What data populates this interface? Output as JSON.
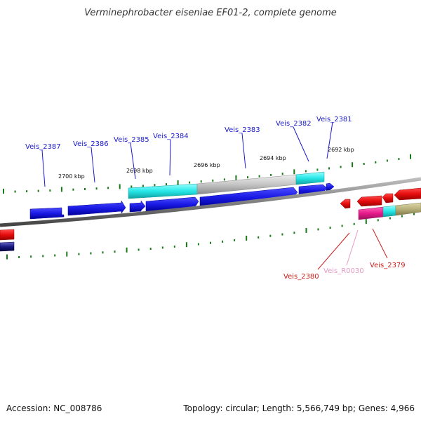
{
  "title": "Verminephrobacter eiseniae EF01-2, complete genome",
  "footer": {
    "accession": "Accession: NC_008786",
    "summary": "Topology: circular; Length: 5,566,749 bp; Genes: 4,966"
  },
  "colors": {
    "cds_forward": "#1a1ae6",
    "cds_reverse": "#e60d0d",
    "rna": "#e61a8c",
    "cyan_feature": "#26e6e6",
    "grey_feature": "#c4c4c4",
    "olive_feature": "#b8b07a",
    "backbone": "#808080",
    "tick": "#1a7a1a",
    "label_forward": "#1a1acc",
    "label_reverse": "#cc1a1a",
    "label_rna": "#e899c4"
  },
  "scale_labels": [
    "2700 kbp",
    "2698 kbp",
    "2696 kbp",
    "2694 kbp",
    "2692 kbp"
  ],
  "gene_labels": [
    {
      "text": "Veis_2387",
      "strand": "forward"
    },
    {
      "text": "Veis_2386",
      "strand": "forward"
    },
    {
      "text": "Veis_2385",
      "strand": "forward"
    },
    {
      "text": "Veis_2384",
      "strand": "forward"
    },
    {
      "text": "Veis_2383",
      "strand": "forward"
    },
    {
      "text": "Veis_2382",
      "strand": "forward"
    },
    {
      "text": "Veis_2381",
      "strand": "forward"
    },
    {
      "text": "Veis_2380",
      "strand": "reverse"
    },
    {
      "text": "Veis_R0030",
      "strand": "rna"
    },
    {
      "text": "Veis_2379",
      "strand": "reverse"
    }
  ]
}
